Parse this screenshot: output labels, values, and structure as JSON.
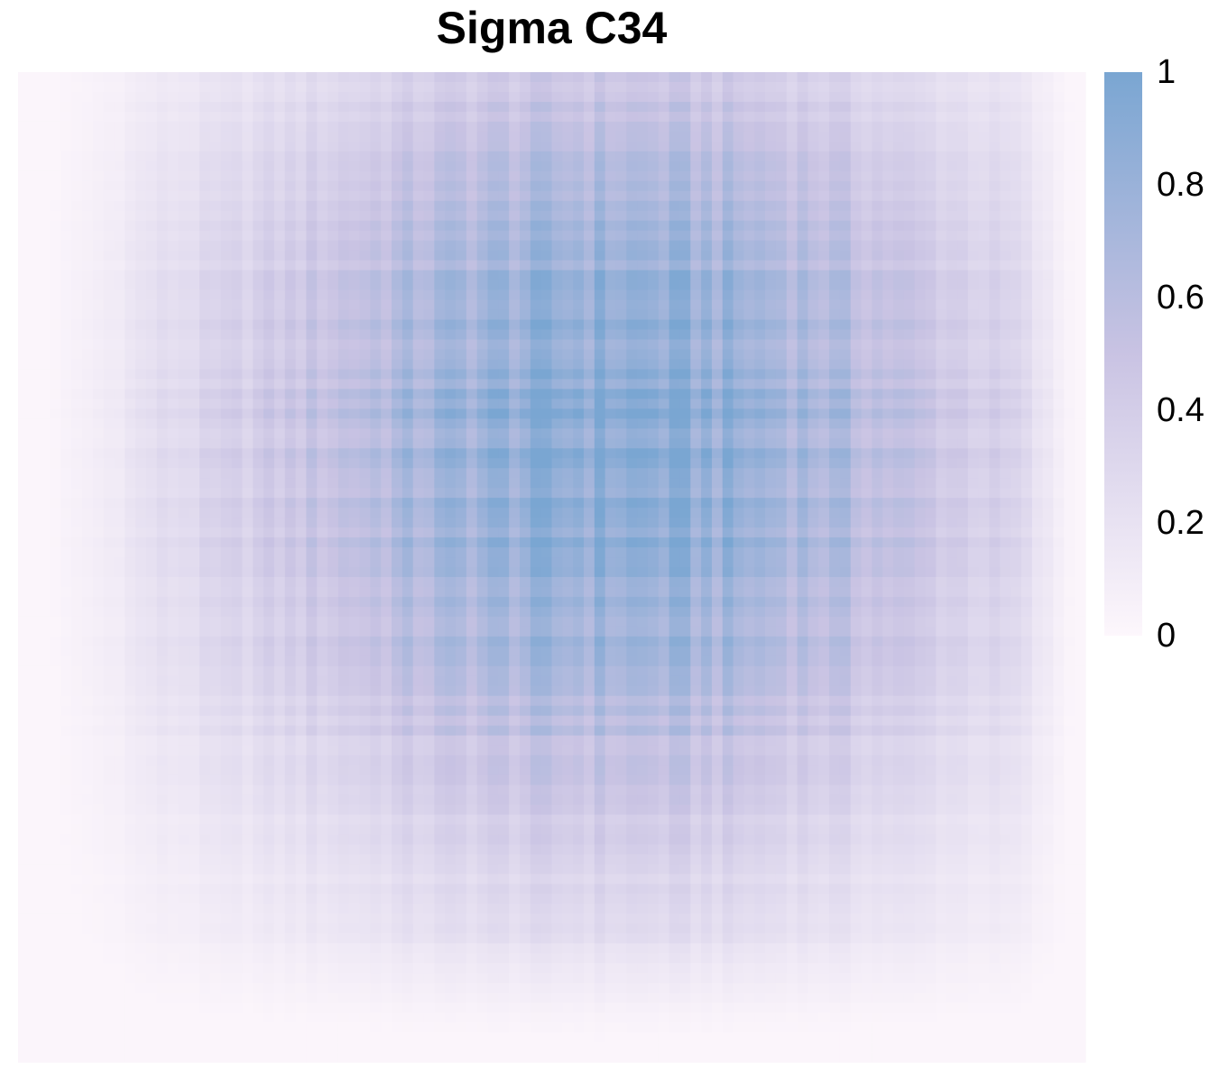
{
  "chart_data": {
    "type": "heatmap",
    "title": "Sigma C34",
    "xlabel": "",
    "ylabel": "",
    "grid": false,
    "legend": {
      "position": "right",
      "ticks": [
        "0",
        "0.2",
        "0.4",
        "0.6",
        "0.8",
        "1"
      ],
      "range": [
        0,
        1
      ]
    },
    "color_scale": {
      "low": "#fdf7fc",
      "mid": "#c9c3e3",
      "high": "#7aa6d2"
    },
    "matrix": {
      "rows": 100,
      "cols": 100,
      "peak_row_fraction": 0.37,
      "peak_col_fraction": 0.56,
      "max_value": 0.95,
      "min_value": 0.02
    }
  }
}
